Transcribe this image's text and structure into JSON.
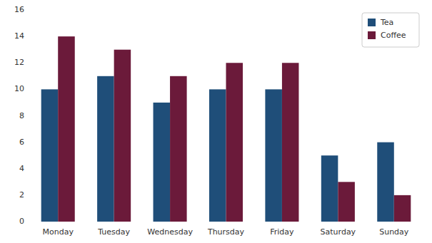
{
  "chart_data": {
    "type": "bar",
    "categories": [
      "Monday",
      "Tuesday",
      "Wednesday",
      "Thursday",
      "Friday",
      "Saturday",
      "Sunday"
    ],
    "series": [
      {
        "name": "Tea",
        "color": "#1F4E79",
        "values": [
          10,
          11,
          9,
          10,
          10,
          5,
          6
        ]
      },
      {
        "name": "Coffee",
        "color": "#6B1A3A",
        "values": [
          14,
          13,
          11,
          12,
          12,
          3,
          2
        ]
      }
    ],
    "ylim": [
      0,
      16
    ],
    "yticks": [
      0,
      2,
      4,
      6,
      8,
      10,
      12,
      14,
      16
    ],
    "grid": false,
    "legend": "upper right"
  }
}
